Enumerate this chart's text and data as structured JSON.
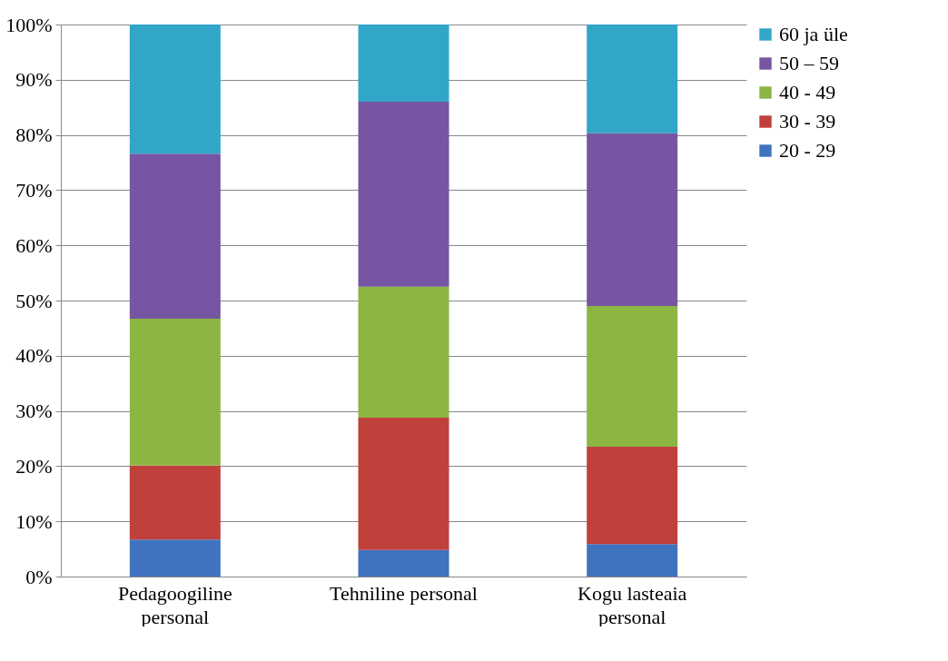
{
  "chart_data": {
    "type": "bar",
    "stacked": true,
    "categories": [
      "Pedagoogiline personal",
      "Tehniline personal",
      "Kogu lasteaia personal"
    ],
    "series": [
      {
        "name": "20 - 29",
        "color": "#3f73bf",
        "values": [
          6.7,
          4.8,
          5.9
        ]
      },
      {
        "name": "30 - 39",
        "color": "#c0403c",
        "values": [
          13.4,
          24.0,
          17.6
        ]
      },
      {
        "name": "40 - 49",
        "color": "#8cb543",
        "values": [
          26.6,
          23.7,
          25.5
        ]
      },
      {
        "name": "50 – 59",
        "color": "#7656a2",
        "values": [
          29.9,
          33.5,
          31.3
        ]
      },
      {
        "name": "60 ja üle",
        "color": "#31a6c9",
        "values": [
          23.4,
          14.0,
          19.7
        ]
      }
    ],
    "ylim": [
      0,
      100
    ],
    "yticks": [
      {
        "value": 0,
        "label": "0%"
      },
      {
        "value": 10,
        "label": "10%"
      },
      {
        "value": 20,
        "label": "20%"
      },
      {
        "value": 30,
        "label": "30%"
      },
      {
        "value": 40,
        "label": "40%"
      },
      {
        "value": 50,
        "label": "50%"
      },
      {
        "value": 60,
        "label": "60%"
      },
      {
        "value": 70,
        "label": "70%"
      },
      {
        "value": 80,
        "label": "80%"
      },
      {
        "value": 90,
        "label": "90%"
      },
      {
        "value": 100,
        "label": "100%"
      }
    ],
    "grid": "y",
    "legend": "right"
  }
}
